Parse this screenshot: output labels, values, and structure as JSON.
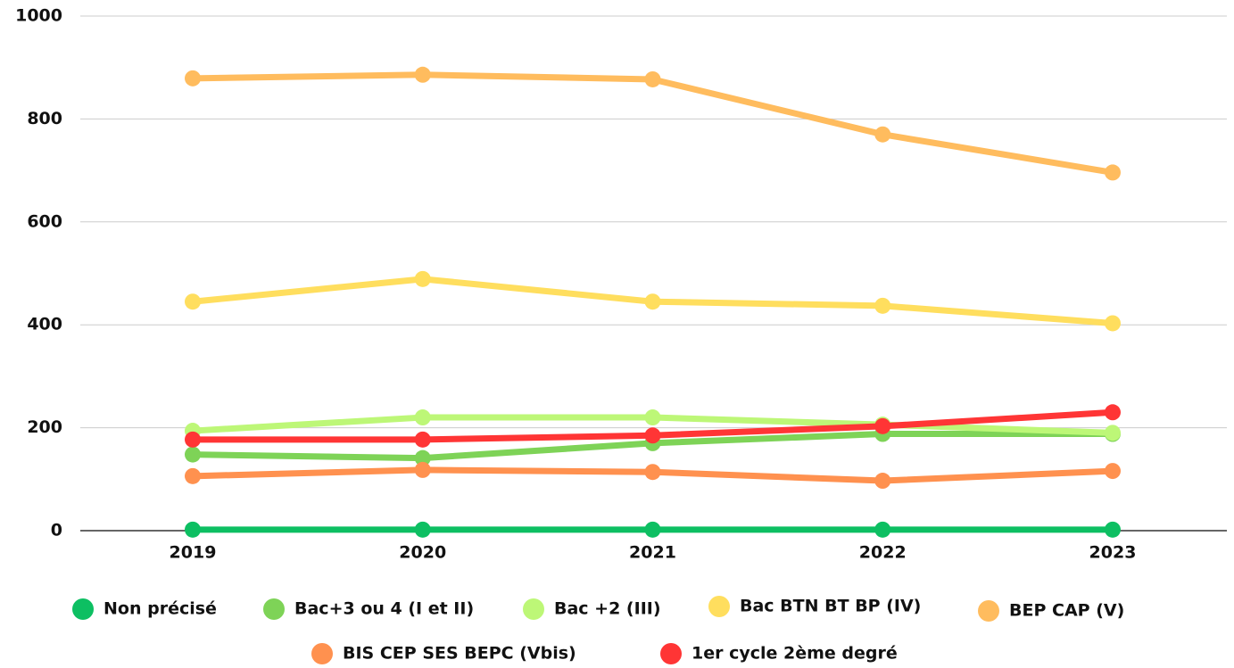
{
  "chart_data": {
    "type": "line",
    "x": [
      "2019",
      "2020",
      "2021",
      "2022",
      "2023"
    ],
    "ylim": [
      0,
      1000
    ],
    "yticks": [
      0,
      200,
      400,
      600,
      800,
      1000
    ],
    "grid": true,
    "series": [
      {
        "name": "Non précisé",
        "color": "#0dbf62",
        "values": [
          2,
          2,
          2,
          2,
          2
        ]
      },
      {
        "name": "Bac+3 ou 4 (I et II)",
        "color": "#7ed357",
        "values": [
          148,
          141,
          170,
          188,
          188
        ]
      },
      {
        "name": "Bac +2 (III)",
        "color": "#bdf777",
        "values": [
          194,
          220,
          220,
          206,
          190
        ]
      },
      {
        "name": "Bac BTN BT BP (IV)",
        "color": "#ffde5e",
        "values": [
          445,
          489,
          445,
          437,
          403
        ]
      },
      {
        "name": "BEP CAP (V)",
        "color": "#ffbc5e",
        "values": [
          879,
          886,
          877,
          770,
          696
        ]
      },
      {
        "name": "BIS CEP SES BEPC (Vbis)",
        "color": "#ff914f",
        "values": [
          106,
          118,
          114,
          97,
          116
        ]
      },
      {
        "name": "1er cycle 2ème degré",
        "color": "#ff3535",
        "values": [
          177,
          177,
          185,
          203,
          230
        ]
      }
    ]
  }
}
